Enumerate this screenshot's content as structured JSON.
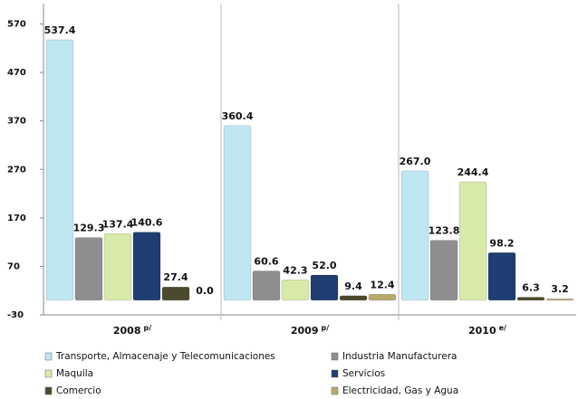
{
  "chart_data": {
    "type": "bar",
    "categories": [
      "2008",
      "2009",
      "2010"
    ],
    "category_notes": [
      "p/",
      "p/",
      "e/"
    ],
    "series": [
      {
        "name": "Transporte, Almacenaje y Telecomunicaciones",
        "color": "#bfe7f2",
        "values": [
          537.4,
          360.4,
          267.0
        ],
        "value_labels": [
          "537.4",
          "360.4",
          "267.0"
        ]
      },
      {
        "name": "Industria Manufacturera",
        "color": "#8e8e8e",
        "values": [
          129.3,
          60.6,
          123.8
        ],
        "value_labels": [
          "129.3",
          "60.6",
          "123.8"
        ]
      },
      {
        "name": "Maquila",
        "color": "#d8eaa9",
        "values": [
          137.4,
          42.3,
          244.4
        ],
        "value_labels": [
          "137.4",
          "42.3",
          "244.4"
        ]
      },
      {
        "name": "Servicios",
        "color": "#1f3d70",
        "values": [
          140.6,
          52.0,
          98.2
        ],
        "value_labels": [
          "140.6",
          "52.0",
          "98.2"
        ]
      },
      {
        "name": "Comercio",
        "color": "#4b4a2c",
        "values": [
          27.4,
          9.4,
          6.3
        ],
        "value_labels": [
          "27.4",
          "9.4",
          "6.3"
        ]
      },
      {
        "name": "Electricidad, Gas y Agua",
        "color": "#b7aa6c",
        "values": [
          0.0,
          12.4,
          3.2
        ],
        "value_labels": [
          "0.0",
          "12.4",
          "3.2"
        ]
      }
    ],
    "ylim": [
      -30,
      612
    ],
    "yticks": [
      -30,
      70,
      170,
      270,
      370,
      470,
      570
    ]
  }
}
